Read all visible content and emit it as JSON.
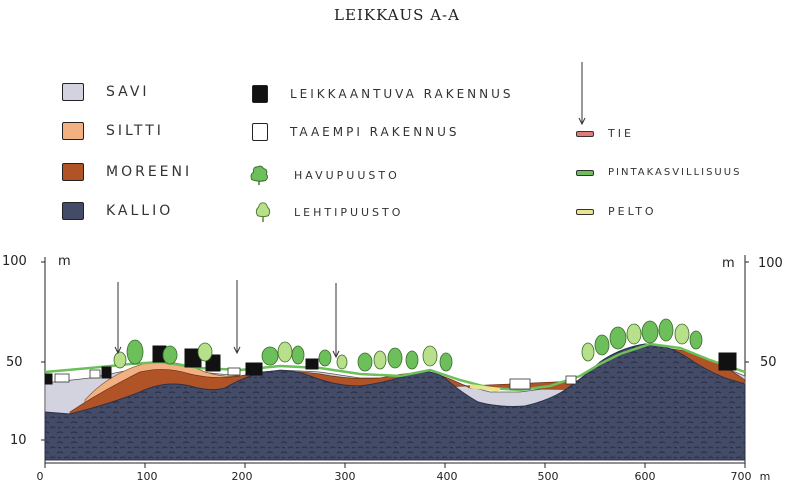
{
  "title": "LEIKKAUS A-A",
  "legend": {
    "soils": [
      {
        "label": "SAVI",
        "color": "#d3d3df"
      },
      {
        "label": "SILTTI",
        "color": "#f2b182"
      },
      {
        "label": "MOREENI",
        "color": "#b05428"
      },
      {
        "label": "KALLIO",
        "color": "#434b66"
      }
    ],
    "buildings": [
      {
        "label": "LEIKKAANTUVA RAKENNUS",
        "color": "#111111"
      },
      {
        "label": "TAAEMPI RAKENNUS",
        "color": "#ffffff"
      }
    ],
    "trees": [
      {
        "label": "HAVUPUUSTO",
        "color": "#6cbf5a",
        "icon": "conifer-tree-icon"
      },
      {
        "label": "LEHTIPUUSTO",
        "color": "#b8e08a",
        "icon": "deciduous-tree-icon"
      }
    ],
    "surfaces": [
      {
        "label": "TIE",
        "color": "#e37a7a"
      },
      {
        "label": "PINTAKASVILLISUUS",
        "color": "#6cbf5a"
      },
      {
        "label": "PELTO",
        "color": "#e8e58e"
      }
    ]
  },
  "axes": {
    "y_unit": "m",
    "y_ticks": [
      "100",
      "50",
      "10"
    ],
    "x_ticks": [
      "0",
      "100",
      "200",
      "300",
      "400",
      "500",
      "600",
      "700"
    ],
    "x_unit": "m"
  },
  "colors": {
    "clay": "#d3d3df",
    "silt": "#f2b182",
    "till": "#b05428",
    "bedrock": "#434b66",
    "vegetation": "#6cbf5a",
    "road": "#e37a7a",
    "field": "#e8e58e"
  }
}
